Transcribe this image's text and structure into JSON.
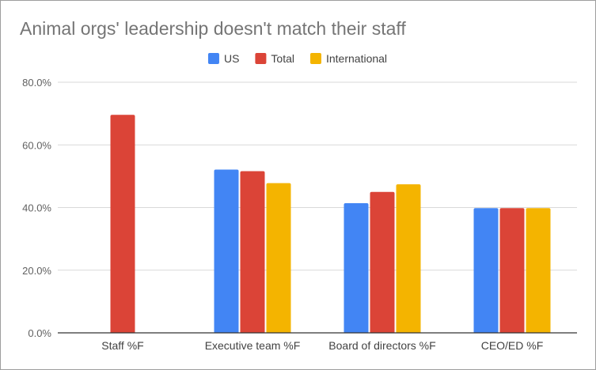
{
  "chart_data": {
    "type": "bar",
    "title": "Animal orgs' leadership doesn't match their staff",
    "xlabel": "",
    "ylabel": "",
    "categories": [
      "Staff %F",
      "Executive team %F",
      "Board of directors %F",
      "CEO/ED %F"
    ],
    "series": [
      {
        "name": "US",
        "color": "#4285f4",
        "values": [
          null,
          52.1,
          41.4,
          39.8
        ]
      },
      {
        "name": "Total",
        "color": "#db4437",
        "values": [
          69.6,
          51.6,
          45.0,
          39.8
        ]
      },
      {
        "name": "International",
        "color": "#f4b400",
        "values": [
          null,
          47.8,
          47.4,
          39.8
        ]
      }
    ],
    "ylim": [
      0,
      80
    ],
    "yticks": [
      "0.0%",
      "20.0%",
      "40.0%",
      "60.0%",
      "80.0%"
    ],
    "grid": true,
    "legend_position": "top-center"
  }
}
